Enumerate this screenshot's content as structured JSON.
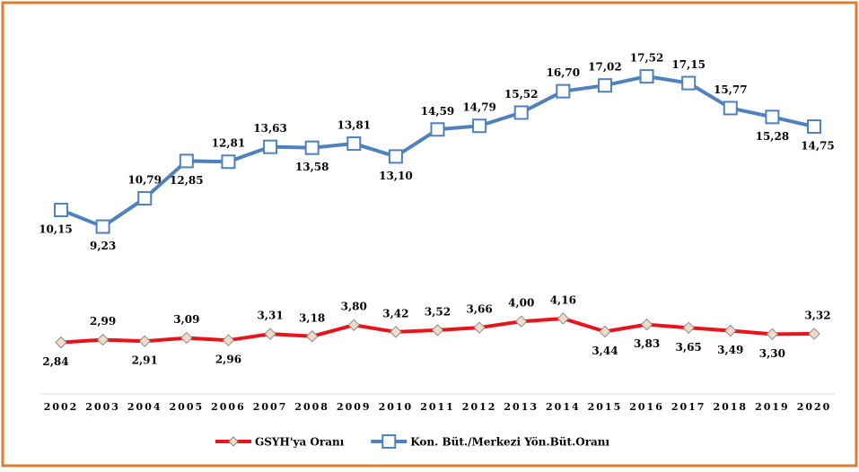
{
  "chart_data": {
    "type": "line",
    "categories": [
      "2002",
      "2003",
      "2004",
      "2005",
      "2006",
      "2007",
      "2008",
      "2009",
      "2010",
      "2011",
      "2012",
      "2013",
      "2014",
      "2015",
      "2016",
      "2017",
      "2018",
      "2019",
      "2020"
    ],
    "series": [
      {
        "name": "GSYH'ya Oranı",
        "color": "#e8131b",
        "values": [
          2.84,
          2.99,
          2.91,
          3.09,
          2.96,
          3.31,
          3.18,
          3.8,
          3.42,
          3.52,
          3.66,
          4.0,
          4.16,
          3.44,
          3.83,
          3.65,
          3.49,
          3.3,
          3.32
        ],
        "value_labels": [
          "2,84",
          "2,99",
          "2,91",
          "3,09",
          "2,96",
          "3,31",
          "3,18",
          "3,80",
          "3,42",
          "3,52",
          "3,66",
          "4,00",
          "4,16",
          "3,44",
          "3,83",
          "3,65",
          "3,49",
          "3,30",
          "3,32"
        ]
      },
      {
        "name": "Kon. Büt./Merkezi Yön.Büt.Oranı",
        "color": "#4f81bd",
        "values": [
          10.15,
          9.23,
          10.79,
          12.85,
          12.81,
          13.63,
          13.58,
          13.81,
          13.1,
          14.59,
          14.79,
          15.52,
          16.7,
          17.02,
          17.52,
          17.15,
          15.77,
          15.28,
          14.75
        ],
        "value_labels": [
          "10,15",
          "9,23",
          "10,79",
          "12,85",
          "12,81",
          "13,63",
          "13,58",
          "13,81",
          "13,10",
          "14,59",
          "14,79",
          "15,52",
          "16,70",
          "17,02",
          "17,52",
          "17,15",
          "15,77",
          "15,28",
          "14,75"
        ]
      }
    ]
  }
}
